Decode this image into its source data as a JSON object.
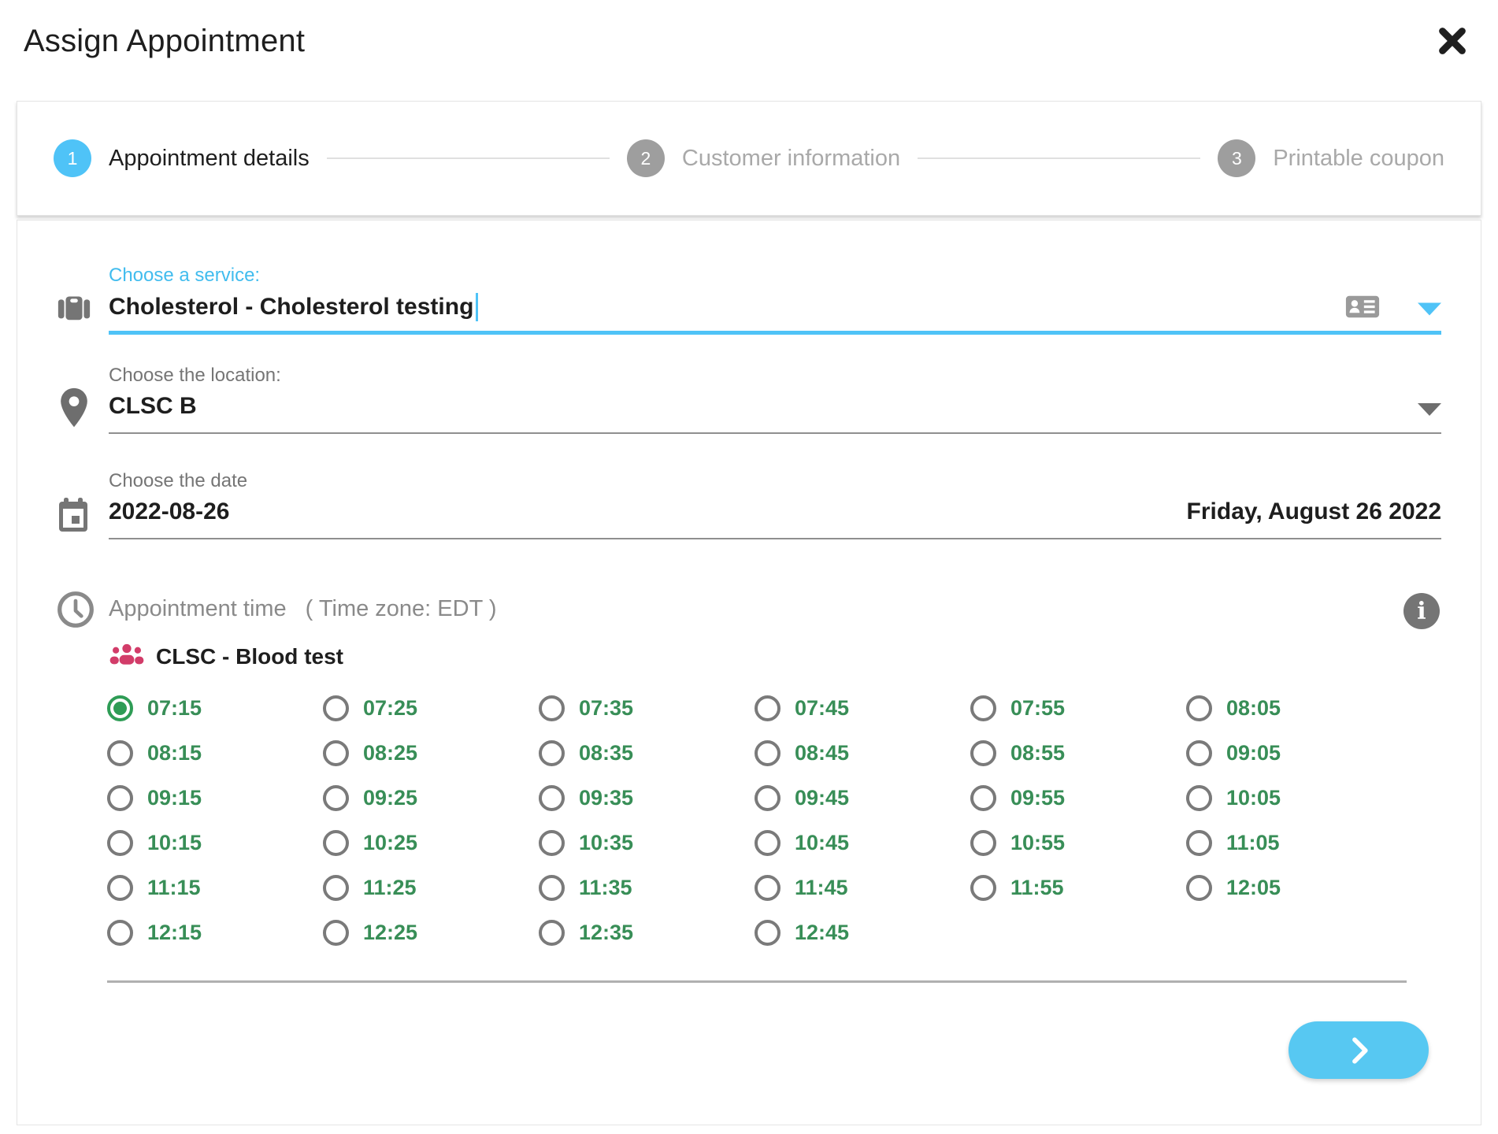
{
  "modal": {
    "title": "Assign Appointment"
  },
  "stepper": {
    "steps": [
      {
        "number": "1",
        "label": "Appointment details",
        "state": "active"
      },
      {
        "number": "2",
        "label": "Customer information",
        "state": "inactive"
      },
      {
        "number": "3",
        "label": "Printable coupon",
        "state": "inactive"
      }
    ]
  },
  "form": {
    "service": {
      "label": "Choose a service:",
      "value": "Cholesterol - Cholesterol testing"
    },
    "location": {
      "label": "Choose the location:",
      "value": "CLSC B"
    },
    "date": {
      "label": "Choose the date",
      "value": "2022-08-26",
      "formatted": "Friday, August 26 2022"
    }
  },
  "appointment_time": {
    "label": "Appointment time",
    "timezone_note": "( Time zone: EDT )",
    "group_label": "CLSC - Blood test",
    "selected": "07:15",
    "slots": [
      "07:15",
      "07:25",
      "07:35",
      "07:45",
      "07:55",
      "08:05",
      "08:15",
      "08:25",
      "08:35",
      "08:45",
      "08:55",
      "09:05",
      "09:15",
      "09:25",
      "09:35",
      "09:45",
      "09:55",
      "10:05",
      "10:15",
      "10:25",
      "10:35",
      "10:45",
      "10:55",
      "11:05",
      "11:15",
      "11:25",
      "11:35",
      "11:45",
      "11:55",
      "12:05",
      "12:15",
      "12:25",
      "12:35",
      "12:45"
    ]
  },
  "icons": {
    "service": "briefcase-icon",
    "service_right": "contact-card-icon",
    "location": "map-pin-icon",
    "date": "calendar-icon",
    "time": "clock-icon",
    "group": "people-group-icon",
    "info": "info-icon",
    "next": "chevron-right-icon",
    "close": "close-icon"
  },
  "colors": {
    "accent_blue": "#4fc3f7",
    "next_button_blue": "#57c8f2",
    "slot_text_green": "#388e57",
    "selected_radio_green": "#2e9c55",
    "group_icon_pink": "#d23c69",
    "inactive_step_gray": "#9e9e9e"
  }
}
